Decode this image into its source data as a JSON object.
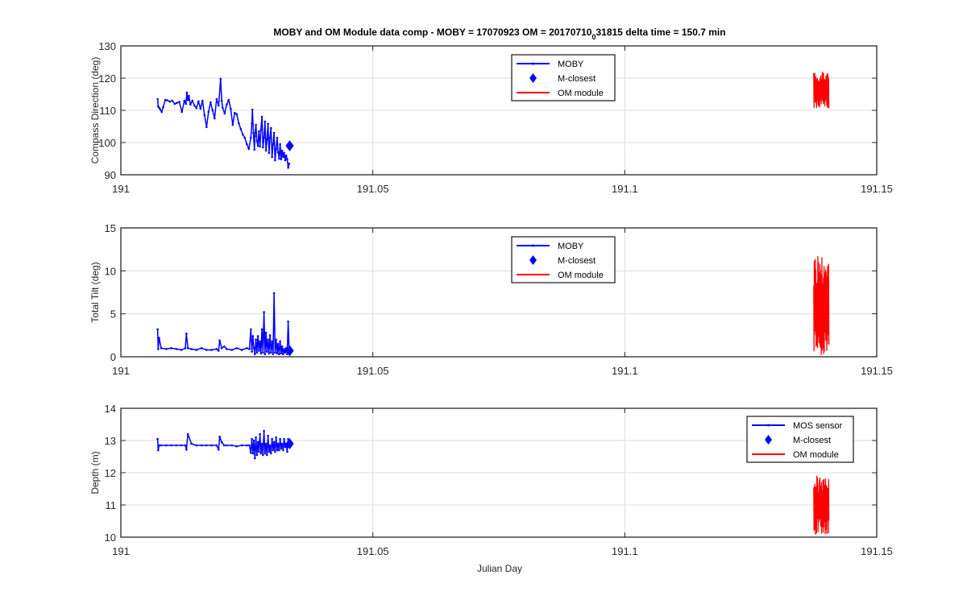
{
  "chart_data": {
    "type": "line",
    "title": "MOBY and OM Module data comp - MOBY = 17070923 OM = 20170710",
    "title_subscript": "0",
    "title_suffix": "31815 delta time = 150.7 min",
    "xlabel": "Julian Day",
    "xlim": [
      191,
      191.15
    ],
    "xticks": [
      "191",
      "191.05",
      "191.1",
      "191.15"
    ],
    "grid": true,
    "colors": {
      "moby": "#0000ff",
      "om": "#ff0000"
    },
    "panels": [
      {
        "ylabel": "Compass Direction (deg)",
        "ylim": [
          90,
          130
        ],
        "yticks": [
          "90",
          "100",
          "110",
          "120",
          "130"
        ],
        "legend": {
          "placement": "top-center",
          "entries": [
            "MOBY",
            "M-closest",
            "OM module"
          ]
        },
        "series": [
          {
            "name": "MOBY",
            "x": [
              191.0073,
              191.0074,
              191.0076,
              191.0078,
              191.0081,
              191.0084,
              191.0088,
              191.0092,
              191.0097,
              191.0102,
              191.0107,
              191.0111,
              191.0116,
              191.0121,
              191.0126,
              191.0129,
              191.0131,
              191.0133,
              191.0135,
              191.0138,
              191.0142,
              191.0146,
              191.015,
              191.0154,
              191.0158,
              191.0162,
              191.0166,
              191.017,
              191.0174,
              191.0178,
              191.0182,
              191.0186,
              191.019,
              191.0194,
              191.0198,
              191.02,
              191.0202,
              191.0206,
              191.021,
              191.0214,
              191.0218,
              191.0222,
              191.0226,
              191.023,
              191.0234,
              191.0238,
              191.0242,
              191.0246,
              191.025,
              191.0254,
              191.0258,
              191.026,
              191.0261,
              191.0263,
              191.0265,
              191.0266,
              191.0268,
              191.027,
              191.0272,
              191.0274,
              191.0276,
              191.0278,
              191.028,
              191.0282,
              191.0284,
              191.0286,
              191.0288,
              191.029,
              191.0292,
              191.0294,
              191.0296,
              191.0298,
              191.03,
              191.0302,
              191.0304,
              191.0306,
              191.0308,
              191.031,
              191.0312,
              191.0314,
              191.0316,
              191.0318,
              191.032,
              191.0322,
              191.0324,
              191.0326,
              191.0328,
              191.033,
              191.0332,
              191.0334
            ],
            "y": [
              113.5,
              111.2,
              110.8,
              110.3,
              109.5,
              111.0,
              113.2,
              113.1,
              112.7,
              113.0,
              112.0,
              112.3,
              112.6,
              109.5,
              113.0,
              112.0,
              115.5,
              113.2,
              114.5,
              111.8,
              113.0,
              111.5,
              110.7,
              112.8,
              110.5,
              113.0,
              108.5,
              104.8,
              109.5,
              112.5,
              110.0,
              107.5,
              113.5,
              111.5,
              119.8,
              113.0,
              110.8,
              109.0,
              111.8,
              113.2,
              110.5,
              105.5,
              109.2,
              108.8,
              106.0,
              104.2,
              102.5,
              101.5,
              99.5,
              98.0,
              101.5,
              106.0,
              110.2,
              103.0,
              97.8,
              102.0,
              105.5,
              100.5,
              99.0,
              103.5,
              98.8,
              104.0,
              108.0,
              98.5,
              101.5,
              106.5,
              97.5,
              101.0,
              105.8,
              96.8,
              101.5,
              104.5,
              95.5,
              99.5,
              103.0,
              94.5,
              98.0,
              101.5,
              97.0,
              95.0,
              99.5,
              94.8,
              97.5,
              95.5,
              96.8,
              94.5,
              96.0,
              94.8,
              92.2,
              93.5
            ]
          },
          {
            "name": "M-closest",
            "x": [
              191.0335
            ],
            "y": [
              99.0
            ]
          },
          {
            "name": "OM module",
            "x_range": [
              191.1375,
              191.1405
            ],
            "y_range": [
              110.5,
              122.0
            ],
            "y_center": 116.0,
            "kind": "oscillation"
          }
        ]
      },
      {
        "ylabel": "Total Tilt (deg)",
        "ylim": [
          0,
          15
        ],
        "yticks": [
          "0",
          "5",
          "10",
          "15"
        ],
        "legend": {
          "placement": "top-center",
          "entries": [
            "MOBY",
            "M-closest",
            "OM module"
          ]
        },
        "series": [
          {
            "name": "MOBY",
            "x": [
              191.0073,
              191.0074,
              191.0076,
              191.008,
              191.009,
              191.01,
              191.011,
              191.012,
              191.0128,
              191.013,
              191.0133,
              191.014,
              191.015,
              191.016,
              191.017,
              191.018,
              191.019,
              191.0194,
              191.0196,
              191.02,
              191.0205,
              191.021,
              191.022,
              191.023,
              191.024,
              191.025,
              191.0255,
              191.0258,
              191.026,
              191.0262,
              191.0264,
              191.0266,
              191.0268,
              191.027,
              191.0272,
              191.0274,
              191.0276,
              191.0278,
              191.028,
              191.0282,
              191.0284,
              191.0286,
              191.0288,
              191.029,
              191.0292,
              191.0294,
              191.0296,
              191.0298,
              191.03,
              191.0302,
              191.0304,
              191.0306,
              191.0308,
              191.031,
              191.0312,
              191.0314,
              191.0316,
              191.0318,
              191.032,
              191.0322,
              191.0324,
              191.0326,
              191.0328,
              191.033,
              191.0332,
              191.0334
            ],
            "y": [
              3.2,
              0.9,
              2.2,
              1.0,
              0.9,
              1.0,
              0.9,
              0.8,
              1.0,
              2.7,
              1.0,
              0.9,
              0.8,
              1.0,
              0.8,
              0.8,
              0.9,
              0.7,
              1.9,
              1.0,
              1.2,
              0.9,
              0.8,
              1.0,
              0.8,
              1.0,
              0.9,
              3.2,
              0.6,
              2.4,
              1.0,
              0.3,
              2.0,
              0.5,
              2.4,
              0.7,
              1.8,
              0.4,
              3.2,
              0.5,
              5.2,
              0.3,
              2.8,
              0.6,
              2.0,
              0.4,
              2.5,
              0.5,
              1.8,
              0.3,
              7.4,
              0.5,
              2.0,
              0.4,
              1.5,
              0.3,
              1.8,
              0.4,
              1.2,
              0.3,
              0.9,
              0.5,
              1.0,
              0.3,
              4.1,
              0.5
            ]
          },
          {
            "name": "M-closest",
            "x": [
              191.0335
            ],
            "y": [
              0.7
            ]
          },
          {
            "name": "OM module",
            "x_range": [
              191.1375,
              191.1405
            ],
            "y_range": [
              0.1,
              12.5
            ],
            "y_center": 5.0,
            "kind": "oscillation"
          }
        ]
      },
      {
        "ylabel": "Depth (m)",
        "ylim": [
          10,
          14
        ],
        "yticks": [
          "10",
          "11",
          "12",
          "13",
          "14"
        ],
        "legend": {
          "placement": "top-right",
          "entries": [
            "MOS sensor",
            "M-closest",
            "OM module"
          ]
        },
        "series": [
          {
            "name": "MOS sensor",
            "x": [
              191.0073,
              191.0074,
              191.0076,
              191.008,
              191.009,
              191.01,
              191.011,
              191.012,
              191.0128,
              191.013,
              191.0133,
              191.014,
              191.015,
              191.016,
              191.017,
              191.018,
              191.019,
              191.0194,
              191.0196,
              191.02,
              191.0205,
              191.021,
              191.022,
              191.023,
              191.024,
              191.025,
              191.0255,
              191.0258,
              191.026,
              191.0262,
              191.0264,
              191.0266,
              191.0268,
              191.027,
              191.0272,
              191.0274,
              191.0276,
              191.0278,
              191.028,
              191.0282,
              191.0284,
              191.0286,
              191.0288,
              191.029,
              191.0292,
              191.0294,
              191.0296,
              191.0298,
              191.03,
              191.0302,
              191.0304,
              191.0306,
              191.0308,
              191.031,
              191.0312,
              191.0314,
              191.0316,
              191.0318,
              191.032,
              191.0322,
              191.0324,
              191.0326,
              191.0328,
              191.033,
              191.0332,
              191.0334
            ],
            "y": [
              13.05,
              12.7,
              12.85,
              12.85,
              12.85,
              12.85,
              12.85,
              12.85,
              12.85,
              12.72,
              13.2,
              12.9,
              12.85,
              12.85,
              12.85,
              12.85,
              12.85,
              12.72,
              13.12,
              12.95,
              12.85,
              12.85,
              12.85,
              12.82,
              12.85,
              12.85,
              12.85,
              12.62,
              13.05,
              12.6,
              13.0,
              12.45,
              13.1,
              12.55,
              12.95,
              12.65,
              13.2,
              12.6,
              12.9,
              12.55,
              13.3,
              12.6,
              12.9,
              12.55,
              13.15,
              12.65,
              12.85,
              12.6,
              13.05,
              12.7,
              12.95,
              12.65,
              13.1,
              12.7,
              12.9,
              12.7,
              13.05,
              12.75,
              12.9,
              12.7,
              13.05,
              12.8,
              12.9,
              12.65,
              13.05,
              12.85
            ]
          },
          {
            "name": "M-closest",
            "x": [
              191.0335
            ],
            "y": [
              12.9
            ]
          },
          {
            "name": "OM module",
            "x_range": [
              191.1375,
              191.1405
            ],
            "y_range": [
              10.05,
              11.92
            ],
            "y_center": 11.0,
            "kind": "oscillation"
          }
        ]
      }
    ]
  }
}
